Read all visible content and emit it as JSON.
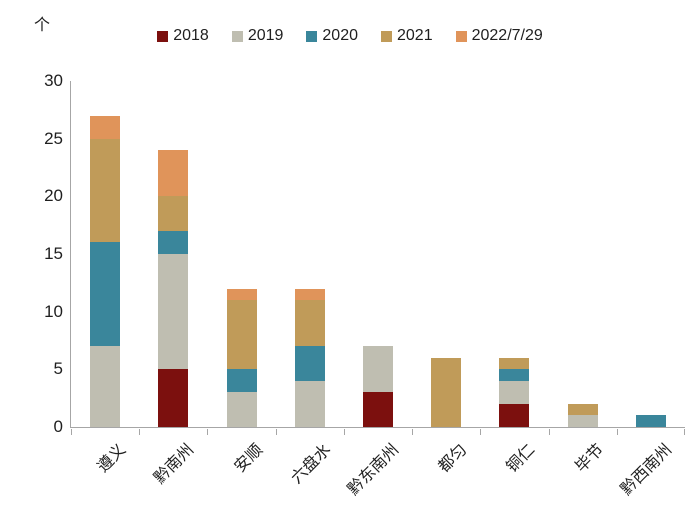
{
  "chart": {
    "unit_label": "个"
  },
  "chart_data": {
    "type": "bar",
    "stacked": true,
    "title": "",
    "xlabel": "",
    "ylabel": "个",
    "categories": [
      "遵义",
      "黔南州",
      "安顺",
      "六盘水",
      "黔东南州",
      "都匀",
      "铜仁",
      "毕节",
      "黔西南州"
    ],
    "series": [
      {
        "name": "2018",
        "color": "#7c100e",
        "values": [
          0,
          5,
          0,
          0,
          3,
          0,
          2,
          0,
          0
        ]
      },
      {
        "name": "2019",
        "color": "#bfbeb1",
        "values": [
          7,
          10,
          3,
          4,
          4,
          0,
          2,
          1,
          0
        ]
      },
      {
        "name": "2020",
        "color": "#3a869b",
        "values": [
          9,
          2,
          2,
          3,
          0,
          0,
          1,
          0,
          1
        ]
      },
      {
        "name": "2021",
        "color": "#c09b59",
        "values": [
          9,
          3,
          6,
          4,
          0,
          6,
          1,
          1,
          0
        ]
      },
      {
        "name": "2022/7/29",
        "color": "#e0945a",
        "values": [
          2,
          4,
          1,
          1,
          0,
          0,
          0,
          0,
          0
        ]
      }
    ],
    "totals": [
      27,
      24,
      12,
      12,
      7,
      6,
      6,
      2,
      1
    ],
    "ylim": [
      0,
      30
    ],
    "yticks": [
      0,
      5,
      10,
      15,
      20,
      25,
      30
    ],
    "legend_position": "top",
    "grid": false,
    "axis_color": "#a6a6a6",
    "text_color": "#1f1f1f",
    "background_color": "#ffffff"
  }
}
